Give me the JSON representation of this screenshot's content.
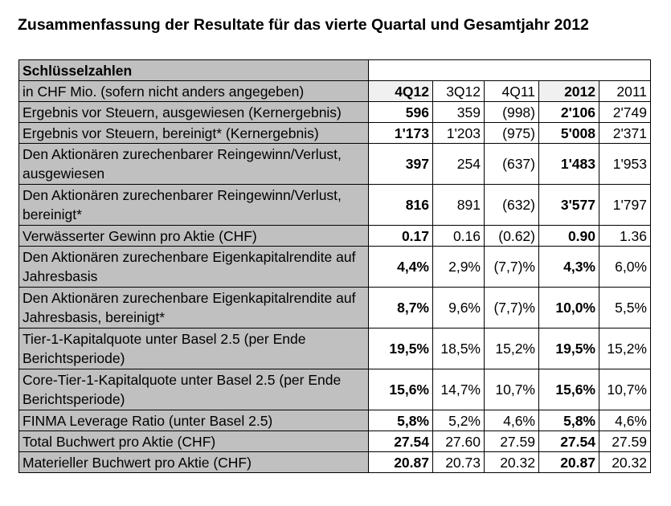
{
  "title": "Zusammenfassung der Resultate für das vierte Quartal und Gesamtjahr 2012",
  "table": {
    "section_label": "Schlüsselzahlen",
    "unit_label": "in CHF Mio. (sofern nicht anders angegeben)",
    "columns": [
      "4Q12",
      "3Q12",
      "4Q11",
      "2012",
      "2011"
    ],
    "rows": [
      {
        "label": "Ergebnis vor Steuern, ausgewiesen (Kernergebnis)",
        "values": [
          "596",
          "359",
          "(998)",
          "2'106",
          "2'749"
        ]
      },
      {
        "label": "Ergebnis vor Steuern, bereinigt* (Kernergebnis)",
        "values": [
          "1'173",
          "1'203",
          "(975)",
          "5'008",
          "2'371"
        ]
      },
      {
        "label": "Den Aktionären zurechenbarer Reingewinn/Verlust, ausgewiesen",
        "values": [
          "397",
          "254",
          "(637)",
          "1'483",
          "1'953"
        ]
      },
      {
        "label": "Den Aktionären zurechenbarer Reingewinn/Verlust, bereinigt*",
        "values": [
          "816",
          "891",
          "(632)",
          "3'577",
          "1'797"
        ]
      },
      {
        "label": "Verwässerter Gewinn pro Aktie (CHF)",
        "values": [
          "0.17",
          "0.16",
          "(0.62)",
          "0.90",
          "1.36"
        ]
      },
      {
        "label": "Den Aktionären zurechenbare Eigenkapitalrendite auf Jahresbasis",
        "values": [
          "4,4%",
          "2,9%",
          "(7,7)%",
          "4,3%",
          "6,0%"
        ]
      },
      {
        "label": "Den Aktionären zurechenbare Eigenkapitalrendite auf Jahresbasis, bereinigt*",
        "values": [
          "8,7%",
          "9,6%",
          "(7,7)%",
          "10,0%",
          "5,5%"
        ]
      },
      {
        "label": "Tier-1-Kapitalquote unter Basel 2.5 (per Ende Berichtsperiode)",
        "values": [
          "19,5%",
          "18,5%",
          "15,2%",
          "19,5%",
          "15,2%"
        ]
      },
      {
        "label": "Core-Tier-1-Kapitalquote unter Basel 2.5 (per Ende Berichtsperiode)",
        "values": [
          "15,6%",
          "14,7%",
          "10,7%",
          "15,6%",
          "10,7%"
        ]
      },
      {
        "label": "FINMA Leverage Ratio (unter Basel 2.5)",
        "values": [
          "5,8%",
          "5,2%",
          "4,6%",
          "5,8%",
          "4,6%"
        ]
      },
      {
        "label": "Total Buchwert pro Aktie (CHF)",
        "values": [
          "27.54",
          "27.60",
          "27.59",
          "27.54",
          "27.59"
        ]
      },
      {
        "label": "Materieller Buchwert pro Aktie (CHF)",
        "values": [
          "20.87",
          "20.73",
          "20.32",
          "20.87",
          "20.32"
        ]
      }
    ]
  }
}
